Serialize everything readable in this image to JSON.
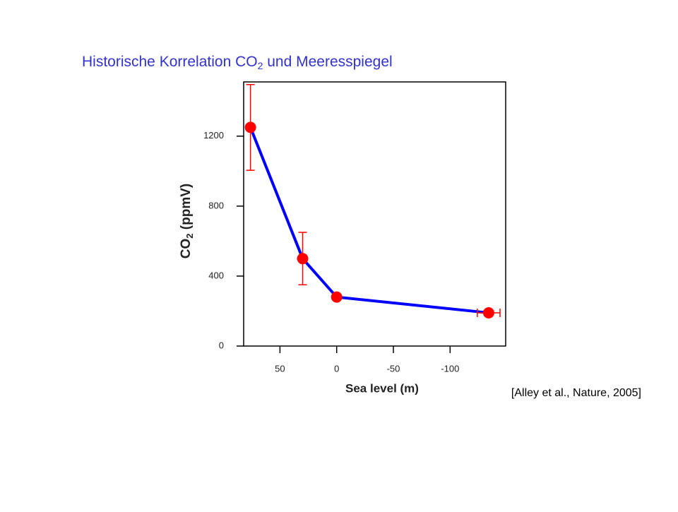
{
  "chart_data": {
    "type": "scatter-line",
    "title": [
      "Historische Korrelation CO",
      "2",
      " und Meeresspiegel"
    ],
    "x_label": "Sea level (m)",
    "y_label": [
      "CO",
      "2",
      " (ppmV)"
    ],
    "annotation": "[Alley et al., Nature, 2005]",
    "x": [
      76,
      30,
      0,
      -134
    ],
    "series": [
      {
        "values": [
          1250,
          500,
          280,
          190
        ],
        "color": "#0000ff",
        "marker_color": "#ff0000",
        "y_err": [
          245,
          150,
          null,
          null
        ],
        "x_err": [
          null,
          null,
          null,
          10
        ]
      }
    ],
    "xlim": [
      82,
      -149
    ],
    "xticks": [
      50,
      0,
      -50,
      -100
    ],
    "ylim": [
      0,
      1510
    ],
    "yticks": [
      0,
      400,
      800,
      1200
    ]
  }
}
